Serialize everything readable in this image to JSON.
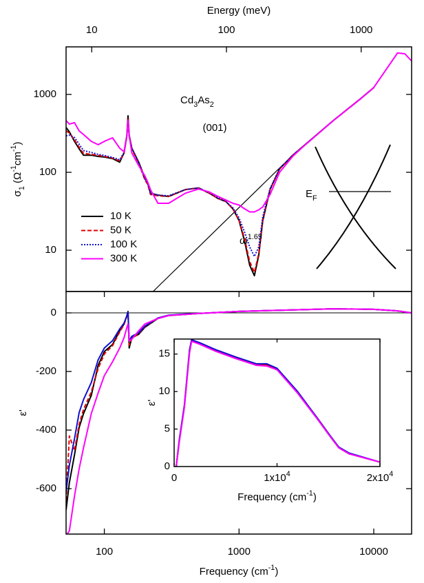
{
  "chart_data": [
    {
      "type": "line",
      "log_x": true,
      "log_y": true,
      "x2label": "Energy (meV)",
      "x2lim": [
        6.45,
        2368
      ],
      "x2ticks": [
        10,
        100,
        1000
      ],
      "xlim": [
        52,
        19100
      ],
      "ylim": [
        2.95,
        4080
      ],
      "yticks": [
        10,
        100,
        1000
      ],
      "ylabel": [
        {
          "text": "σ"
        },
        {
          "text": "1",
          "pos": "sub"
        },
        {
          "text": " (Ω"
        },
        {
          "text": "-1",
          "pos": "sup"
        },
        {
          "text": "cm"
        },
        {
          "text": "-1",
          "pos": "sup"
        },
        {
          "text": ")"
        }
      ],
      "annotations": {
        "compound": [
          {
            "text": "Cd"
          },
          {
            "text": "3",
            "pos": "sub"
          },
          {
            "text": "As"
          },
          {
            "text": "2",
            "pos": "sub"
          }
        ],
        "orientation": "(001)",
        "power_law": [
          {
            "text": "ω"
          },
          {
            "text": "1.65",
            "pos": "sup"
          }
        ],
        "fermi": [
          {
            "text": "E"
          },
          {
            "text": "F",
            "pos": "sub"
          }
        ]
      },
      "fit_line": {
        "x": [
          230,
          2146
        ],
        "values": [
          2.95,
          128
        ]
      },
      "legend": "lower left",
      "x": [
        52,
        55,
        60,
        65,
        70,
        80,
        90,
        100,
        115,
        130,
        140,
        147,
        150,
        153,
        160,
        180,
        200,
        210,
        220,
        250,
        300,
        400,
        500,
        600,
        700,
        800,
        900,
        1000,
        1100,
        1200,
        1300,
        1400,
        1500,
        1700,
        2000,
        2500,
        3000,
        5000,
        8000,
        10000,
        15000,
        17000,
        19000
      ],
      "series": [
        {
          "name": "10 K",
          "color": "#000000",
          "dash": "solid",
          "values": [
            376,
            330,
            250,
            200,
            166,
            166,
            160,
            157,
            150,
            135,
            177,
            300,
            532,
            300,
            204,
            135,
            85,
            73,
            54,
            51,
            49,
            60,
            63,
            54,
            46,
            42,
            34,
            24,
            13,
            6.4,
            4.7,
            8.6,
            24,
            60,
            111,
            166,
            217,
            461,
            885,
            1226,
            null,
            null,
            null
          ]
        },
        {
          "name": "50 K",
          "color": "#e00000",
          "dash": "dashed",
          "values": [
            340,
            320,
            260,
            210,
            175,
            170,
            165,
            160,
            152,
            140,
            175,
            290,
            480,
            290,
            200,
            130,
            80,
            70,
            52,
            50,
            49,
            60,
            63,
            54,
            46,
            42,
            34,
            24,
            14,
            7.1,
            5.2,
            9,
            25,
            60,
            110,
            165,
            215,
            460,
            880,
            1220,
            null,
            null,
            null
          ]
        },
        {
          "name": "100 K",
          "color": "#1010d0",
          "dash": "dotted",
          "values": [
            294,
            300,
            280,
            230,
            190,
            180,
            170,
            165,
            155,
            145,
            180,
            290,
            470,
            285,
            205,
            132,
            82,
            72,
            53,
            51,
            50,
            60,
            63,
            55,
            47,
            42,
            35,
            26,
            17,
            11,
            8.3,
            11,
            27,
            62,
            112,
            165,
            215,
            460,
            880,
            1220,
            null,
            null,
            null
          ]
        },
        {
          "name": "300 K",
          "color": "#ff00ff",
          "dash": "solid",
          "values": [
            461,
            416,
            434,
            340,
            306,
            250,
            226,
            250,
            277,
            204,
            184,
            300,
            461,
            300,
            177,
            122,
            90,
            75,
            60,
            40,
            40,
            54,
            61,
            56,
            49,
            44,
            40,
            38,
            34,
            31,
            31,
            33,
            36,
            52,
            100,
            160,
            215,
            460,
            880,
            1226,
            3400,
            3330,
            2710
          ]
        }
      ]
    },
    {
      "type": "line",
      "log_x": true,
      "log_y": false,
      "xlim": [
        52,
        19100
      ],
      "xticks": [
        100,
        1000,
        10000
      ],
      "xlabel": [
        {
          "text": "Frequency (cm"
        },
        {
          "text": "-1",
          "pos": "sup"
        },
        {
          "text": ")"
        }
      ],
      "ylim": [
        -755,
        73
      ],
      "yticks": [
        -600,
        -400,
        -200,
        0
      ],
      "ylabel": [
        {
          "text": "ε'"
        }
      ],
      "zero_line": true,
      "x": [
        52,
        55,
        60,
        65,
        70,
        80,
        90,
        100,
        115,
        130,
        140,
        147,
        150,
        153,
        160,
        180,
        200,
        250,
        300,
        400,
        500,
        1000,
        2000,
        5000,
        10000,
        15000,
        19000
      ],
      "series": [
        {
          "color": "#000000",
          "dash": "solid",
          "values": [
            -673,
            -579,
            -485,
            -391,
            -344,
            -282,
            -179,
            -132,
            -108,
            -61,
            -38,
            -9,
            5,
            -120,
            -85,
            -73,
            -49,
            -19,
            -9,
            -5,
            -2,
            5,
            9,
            14,
            12,
            7,
            0
          ]
        },
        {
          "color": "#e00000",
          "dash": "dashed",
          "values": [
            -640,
            -420,
            -470,
            -380,
            -330,
            -270,
            -190,
            -140,
            -112,
            -65,
            -40,
            -12,
            2,
            -110,
            -88,
            -70,
            -47,
            -18,
            -9,
            -5,
            -2,
            5,
            9,
            14,
            12,
            7,
            0
          ]
        },
        {
          "color": "#1010d0",
          "dash": "solid",
          "values": [
            -610,
            -520,
            -430,
            -340,
            -296,
            -238,
            -160,
            -120,
            -95,
            -55,
            -35,
            -10,
            3,
            -95,
            -80,
            -68,
            -45,
            -17,
            -8,
            -4,
            -2,
            5,
            9,
            14,
            12,
            7,
            0
          ]
        },
        {
          "color": "#ff00ff",
          "dash": "solid",
          "values": [
            -760,
            -744,
            -626,
            -532,
            -461,
            -344,
            -273,
            -214,
            -167,
            -120,
            -85,
            -50,
            -38,
            -96,
            -90,
            -61,
            -38,
            -19,
            -9,
            -5,
            -2,
            5,
            9,
            14,
            12,
            7,
            0
          ]
        }
      ]
    },
    {
      "type": "line",
      "inset": true,
      "log_x": false,
      "log_y": false,
      "xlim": [
        0,
        20000
      ],
      "xticks": [
        0,
        {
          "value": 10000,
          "label": [
            {
              "text": "1x10"
            },
            {
              "text": "4",
              "pos": "sup"
            }
          ]
        },
        {
          "value": 20000,
          "label": [
            {
              "text": "2x10"
            },
            {
              "text": "4",
              "pos": "sup"
            }
          ]
        }
      ],
      "xlabel": [
        {
          "text": "Frequency (cm"
        },
        {
          "text": "-1",
          "pos": "sup"
        },
        {
          "text": ")"
        }
      ],
      "ylim": [
        0,
        17
      ],
      "yticks": [
        0,
        5,
        10,
        15
      ],
      "ylabel": [
        {
          "text": "ε'"
        }
      ],
      "x": [
        200,
        500,
        1000,
        1500,
        1700,
        2500,
        4000,
        6000,
        8000,
        9000,
        10000,
        12000,
        14000,
        15000,
        16000,
        17000,
        20000
      ],
      "series": [
        {
          "color": "#000000",
          "dash": "solid",
          "values": [
            0,
            3.4,
            8,
            15.4,
            16.8,
            16.3,
            15.4,
            14.4,
            13.5,
            13.6,
            13.0,
            9.8,
            6.2,
            4.3,
            2.5,
            1.7,
            0.6
          ]
        },
        {
          "color": "#e00000",
          "dash": "solid",
          "values": [
            0,
            3.5,
            8.1,
            15.5,
            16.9,
            16.4,
            15.5,
            14.5,
            13.6,
            13.5,
            13.0,
            9.9,
            6.3,
            4.4,
            2.5,
            1.7,
            0.6
          ]
        },
        {
          "color": "#1010d0",
          "dash": "solid",
          "values": [
            0,
            3.6,
            8.2,
            15.6,
            16.9,
            16.5,
            15.6,
            14.6,
            13.7,
            13.7,
            13.1,
            10.0,
            6.3,
            4.4,
            2.6,
            1.8,
            0.6
          ]
        },
        {
          "color": "#ff00ff",
          "dash": "solid",
          "values": [
            0,
            3.3,
            7.9,
            15.2,
            16.7,
            16.3,
            15.4,
            14.4,
            13.5,
            13.4,
            12.9,
            9.8,
            6.2,
            4.3,
            2.5,
            1.7,
            0.6
          ]
        }
      ]
    }
  ]
}
